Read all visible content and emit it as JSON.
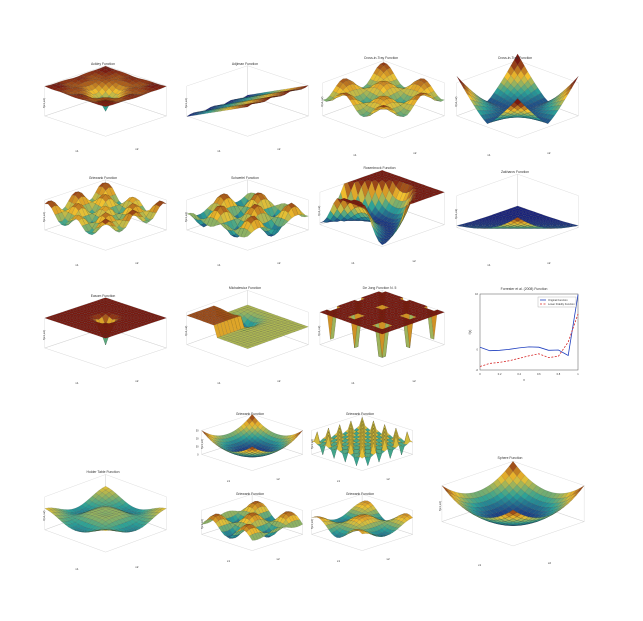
{
  "page": {
    "background": "#ffffff"
  },
  "palette": {
    "low": "#1a237e",
    "mid": "#2aa198",
    "high": "#f2c12e",
    "top": "#7a1a10",
    "mesh": "#111111"
  },
  "chart_data": [
    {
      "id": "p1",
      "type": "surface",
      "title": "Ackley Function",
      "xlabel": "x1",
      "ylabel": "x2",
      "zlabel": "f(x1,x2)",
      "shape": "ackley"
    },
    {
      "id": "p2",
      "type": "surface",
      "title": "Adjiman Function",
      "xlabel": "x1",
      "ylabel": "x2",
      "zlabel": "f(x1,x2)",
      "shape": "slope"
    },
    {
      "id": "p3",
      "type": "surface",
      "title": "Cross-in-Tray Function",
      "xlabel": "x1",
      "ylabel": "x2",
      "zlabel": "f(x1,x2)",
      "shape": "crossTray"
    },
    {
      "id": "p4",
      "type": "surface",
      "title": "Cross-in-Tray Function",
      "xlabel": "x1",
      "ylabel": "x2",
      "zlabel": "f(x1,x2)",
      "shape": "bowlCorners"
    },
    {
      "id": "p5",
      "type": "surface",
      "title": "Griewank Function",
      "xlabel": "x1",
      "ylabel": "x2",
      "zlabel": "f(x1,x2)",
      "shape": "bumpsRidge"
    },
    {
      "id": "p6",
      "type": "surface",
      "title": "Schwefel Function",
      "xlabel": "x1",
      "ylabel": "x2",
      "zlabel": "f(x1,x2)",
      "shape": "waves"
    },
    {
      "id": "p7",
      "type": "surface",
      "title": "Rosenbrock Function",
      "xlabel": "x1",
      "ylabel": "x2",
      "zlabel": "f(x1,x2)",
      "shape": "valley"
    },
    {
      "id": "p8",
      "type": "surface",
      "title": "Zakharov Function",
      "xlabel": "x1",
      "ylabel": "x2",
      "zlabel": "f(x1,x2)",
      "shape": "corner"
    },
    {
      "id": "p9",
      "type": "surface",
      "title": "Easom Function",
      "xlabel": "x1",
      "ylabel": "x2",
      "zlabel": "f(x1,x2)",
      "shape": "flatSpike"
    },
    {
      "id": "p10",
      "type": "surface",
      "title": "Michalewicz Function",
      "xlabel": "x1",
      "ylabel": "x2",
      "zlabel": "f(x1,x2)",
      "shape": "stepped"
    },
    {
      "id": "p11",
      "type": "surface",
      "title": "De Jong Function N. 5",
      "xlabel": "x1",
      "ylabel": "x2",
      "zlabel": "f(x1,x2)",
      "shape": "wells"
    },
    {
      "id": "p12",
      "type": "line",
      "title": "Forrester et al. (2008) Function",
      "xlabel": "x",
      "ylabel": "f(x)",
      "x": [
        0,
        0.1,
        0.2,
        0.3,
        0.4,
        0.5,
        0.6,
        0.7,
        0.8,
        0.9,
        1.0
      ],
      "series": [
        {
          "name": "Original Function",
          "color": "#1f3fbf",
          "values": [
            0.6,
            -0.4,
            -0.3,
            0.0,
            0.4,
            0.7,
            0.6,
            -0.3,
            -0.2,
            -1.8,
            15.8
          ]
        },
        {
          "name": "Lower Fidelity Function",
          "color": "#d62728",
          "values": [
            -5.0,
            -4.1,
            -3.8,
            -3.3,
            -2.6,
            -1.9,
            -1.3,
            -2.4,
            -2.0,
            2.1,
            10.2
          ]
        }
      ],
      "ylim": [
        -6,
        16
      ],
      "xlim": [
        0,
        1
      ],
      "legend": "top-right",
      "grid": false
    },
    {
      "id": "p13",
      "type": "surface",
      "title": "Holder Table Function",
      "xlabel": "x1",
      "ylabel": "x2",
      "zlabel": "f(x1,x2)",
      "shape": "holder"
    },
    {
      "id": "p14",
      "type": "surface",
      "title": "Griewank Function",
      "xlabel": "x1",
      "ylabel": "x2",
      "zlabel": "f(x1,x2)",
      "shape": "bowl",
      "ticks_z": [
        "150",
        "100",
        "50",
        "0"
      ]
    },
    {
      "id": "p15",
      "type": "surface",
      "title": "Griewank Function",
      "xlabel": "x1",
      "ylabel": "x2",
      "zlabel": "f(x1,x2)",
      "shape": "spikes"
    },
    {
      "id": "p16",
      "type": "surface",
      "title": "Griewank Function",
      "xlabel": "x1",
      "ylabel": "x2",
      "zlabel": "f(x1,x2)",
      "shape": "eggcrate"
    },
    {
      "id": "p17",
      "type": "surface",
      "title": "Griewank Function",
      "xlabel": "x1",
      "ylabel": "x2",
      "zlabel": "f(x1,x2)",
      "shape": "eggcrateSoft"
    },
    {
      "id": "p18",
      "type": "surface",
      "title": "Sphere Function",
      "xlabel": "x1",
      "ylabel": "x2",
      "zlabel": "f(x1,x2)",
      "shape": "bowl"
    }
  ]
}
